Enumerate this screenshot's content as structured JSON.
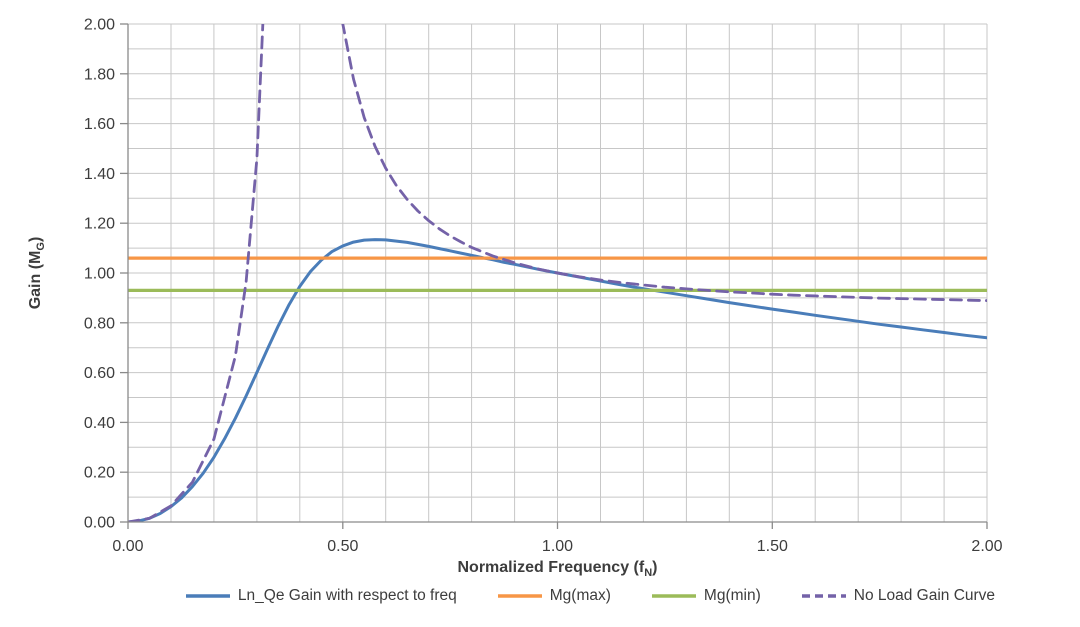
{
  "chart_data": {
    "type": "line",
    "title": "",
    "xlabel": {
      "main": "Normalized Frequency (f",
      "sub": "N",
      "suffix": ")"
    },
    "ylabel": {
      "main": "Gain (M",
      "sub": "G",
      "suffix": ")"
    },
    "xlim": [
      0,
      2
    ],
    "ylim": [
      0,
      2
    ],
    "grid": true,
    "grid_step_x": 0.1,
    "grid_step_y": 0.1,
    "x_tick_step": 0.5,
    "y_tick_step": 0.2,
    "x_tick_labels": [
      "0.00",
      "0.50",
      "1.00",
      "1.50",
      "2.00"
    ],
    "y_tick_labels": [
      "0.00",
      "0.20",
      "0.40",
      "0.60",
      "0.80",
      "1.00",
      "1.20",
      "1.40",
      "1.60",
      "1.80",
      "2.00"
    ],
    "legend_position": "bottom",
    "colors": {
      "grid": "#c7c7c7",
      "axis": "#8a8a8a",
      "tick_text": "#3d3d3d"
    },
    "series": [
      {
        "name": "Ln_Qe Gain with respect to freq",
        "color": "#4a7db9",
        "style": "solid",
        "width": 3,
        "points": [
          [
            0,
            0
          ],
          [
            0.025,
            0.004
          ],
          [
            0.05,
            0.015
          ],
          [
            0.075,
            0.034
          ],
          [
            0.1,
            0.062
          ],
          [
            0.125,
            0.097
          ],
          [
            0.15,
            0.142
          ],
          [
            0.175,
            0.196
          ],
          [
            0.2,
            0.26
          ],
          [
            0.225,
            0.334
          ],
          [
            0.25,
            0.417
          ],
          [
            0.275,
            0.506
          ],
          [
            0.3,
            0.601
          ],
          [
            0.325,
            0.696
          ],
          [
            0.35,
            0.788
          ],
          [
            0.375,
            0.873
          ],
          [
            0.4,
            0.946
          ],
          [
            0.425,
            1.006
          ],
          [
            0.45,
            1.052
          ],
          [
            0.475,
            1.086
          ],
          [
            0.5,
            1.109
          ],
          [
            0.525,
            1.124
          ],
          [
            0.55,
            1.132
          ],
          [
            0.575,
            1.134
          ],
          [
            0.6,
            1.133
          ],
          [
            0.625,
            1.128
          ],
          [
            0.65,
            1.123
          ],
          [
            0.675,
            1.115
          ],
          [
            0.7,
            1.107
          ],
          [
            0.725,
            1.098
          ],
          [
            0.75,
            1.089
          ],
          [
            0.775,
            1.08
          ],
          [
            0.8,
            1.071
          ],
          [
            0.825,
            1.062
          ],
          [
            0.85,
            1.053
          ],
          [
            0.875,
            1.043
          ],
          [
            0.9,
            1.035
          ],
          [
            0.925,
            1.026
          ],
          [
            0.95,
            1.017
          ],
          [
            0.975,
            1.008
          ],
          [
            1,
            1
          ],
          [
            1.05,
            0.984
          ],
          [
            1.1,
            0.968
          ],
          [
            1.15,
            0.952
          ],
          [
            1.2,
            0.937
          ],
          [
            1.25,
            0.923
          ],
          [
            1.3,
            0.909
          ],
          [
            1.35,
            0.895
          ],
          [
            1.4,
            0.881
          ],
          [
            1.45,
            0.868
          ],
          [
            1.5,
            0.855
          ],
          [
            1.55,
            0.843
          ],
          [
            1.6,
            0.83
          ],
          [
            1.65,
            0.818
          ],
          [
            1.7,
            0.806
          ],
          [
            1.75,
            0.794
          ],
          [
            1.8,
            0.783
          ],
          [
            1.85,
            0.772
          ],
          [
            1.9,
            0.761
          ],
          [
            1.95,
            0.75
          ],
          [
            2,
            0.74
          ]
        ]
      },
      {
        "name": "Mg(max)",
        "color": "#f79646",
        "style": "solid",
        "width": 3.2,
        "value": 1.06,
        "points": [
          [
            0,
            1.06
          ],
          [
            2,
            1.06
          ]
        ]
      },
      {
        "name": "Mg(min)",
        "color": "#9bbb59",
        "style": "solid",
        "width": 3.2,
        "value": 0.93,
        "points": [
          [
            0,
            0.93
          ],
          [
            2,
            0.93
          ]
        ]
      },
      {
        "name": "No Load Gain Curve",
        "color": "#7462a8",
        "style": "dashed",
        "width": 2.8,
        "points": [
          [
            0,
            0
          ],
          [
            0.05,
            0.015
          ],
          [
            0.1,
            0.065
          ],
          [
            0.15,
            0.16
          ],
          [
            0.2,
            0.333
          ],
          [
            0.25,
            0.667
          ],
          [
            0.275,
            0.964
          ],
          [
            0.3,
            1.46
          ],
          [
            0.325,
            2.432
          ],
          [
            0.35,
            5.158
          ],
          [
            0.375,
            10
          ],
          [
            0.39,
            10
          ],
          [
            0.4,
            8
          ],
          [
            0.425,
            4.099
          ],
          [
            0.45,
            2.91
          ],
          [
            0.475,
            2.338
          ],
          [
            0.5,
            2
          ],
          [
            0.525,
            1.779
          ],
          [
            0.55,
            1.624
          ],
          [
            0.575,
            1.509
          ],
          [
            0.6,
            1.421
          ],
          [
            0.625,
            1.351
          ],
          [
            0.65,
            1.295
          ],
          [
            0.675,
            1.249
          ],
          [
            0.7,
            1.21
          ],
          [
            0.725,
            1.177
          ],
          [
            0.75,
            1.149
          ],
          [
            0.775,
            1.125
          ],
          [
            0.8,
            1.103
          ],
          [
            0.85,
            1.068
          ],
          [
            0.9,
            1.041
          ],
          [
            0.95,
            1.018
          ],
          [
            1,
            1
          ],
          [
            1.05,
            0.985
          ],
          [
            1.1,
            0.972
          ],
          [
            1.15,
            0.961
          ],
          [
            1.2,
            0.952
          ],
          [
            1.25,
            0.943
          ],
          [
            1.3,
            0.936
          ],
          [
            1.35,
            0.93
          ],
          [
            1.4,
            0.924
          ],
          [
            1.45,
            0.92
          ],
          [
            1.5,
            0.915
          ],
          [
            1.55,
            0.911
          ],
          [
            1.6,
            0.908
          ],
          [
            1.65,
            0.905
          ],
          [
            1.7,
            0.902
          ],
          [
            1.75,
            0.899
          ],
          [
            1.8,
            0.897
          ],
          [
            1.85,
            0.895
          ],
          [
            1.9,
            0.893
          ],
          [
            1.95,
            0.891
          ],
          [
            2,
            0.889
          ]
        ]
      }
    ]
  }
}
